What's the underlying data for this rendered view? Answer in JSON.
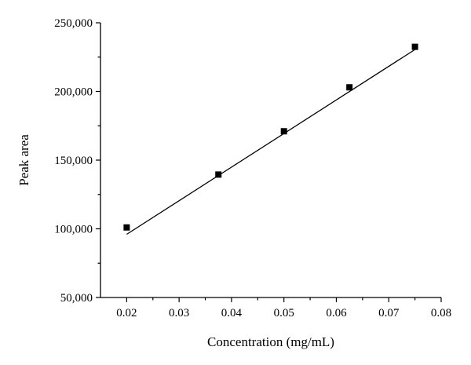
{
  "chart_data": {
    "type": "scatter",
    "xlabel": "Concentration (mg/mL)",
    "ylabel": "Peak area",
    "xlim": [
      0.015,
      0.08
    ],
    "ylim": [
      50000,
      250000
    ],
    "x_ticks": [
      0.02,
      0.03,
      0.04,
      0.05,
      0.06,
      0.07,
      0.08
    ],
    "x_tick_labels": [
      "0.02",
      "0.03",
      "0.04",
      "0.05",
      "0.06",
      "0.07",
      "0.08"
    ],
    "y_ticks": [
      50000,
      100000,
      150000,
      200000,
      250000
    ],
    "y_tick_labels": [
      "50,000",
      "100,000",
      "150,000",
      "200,000",
      "250,000"
    ],
    "grid": false,
    "series": [
      {
        "marker": "square",
        "x": [
          0.02,
          0.0375,
          0.05,
          0.0625,
          0.075
        ],
        "y": [
          101000,
          139500,
          171000,
          203000,
          232500
        ]
      }
    ],
    "fit_line": {
      "x": [
        0.02,
        0.075
      ],
      "y": [
        96000,
        230500
      ]
    }
  }
}
